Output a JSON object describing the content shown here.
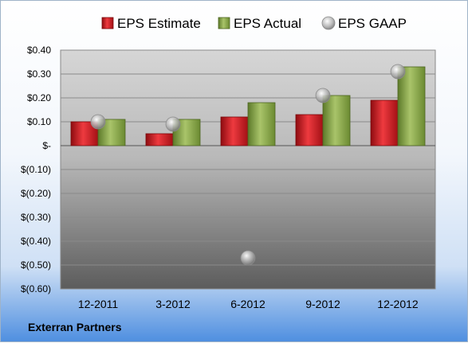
{
  "company": "Exterran Partners",
  "chart_data": {
    "type": "bar",
    "categories": [
      "12-2011",
      "3-2012",
      "6-2012",
      "9-2012",
      "12-2012"
    ],
    "series": [
      {
        "name": "EPS Estimate",
        "type": "bar",
        "color": "#c8161d",
        "values": [
          0.1,
          0.05,
          0.12,
          0.13,
          0.19
        ]
      },
      {
        "name": "EPS Actual",
        "type": "bar",
        "color": "#7f9f3f",
        "values": [
          0.11,
          0.11,
          0.18,
          0.21,
          0.33
        ]
      },
      {
        "name": "EPS GAAP",
        "type": "scatter",
        "color": "#a6a6a6",
        "values": [
          0.1,
          0.09,
          -0.47,
          0.21,
          0.31
        ]
      }
    ],
    "ylim": [
      -0.6,
      0.4
    ],
    "yticks": [
      0.4,
      0.3,
      0.2,
      0.1,
      0,
      -0.1,
      -0.2,
      -0.3,
      -0.4,
      -0.5,
      -0.6
    ],
    "ytick_labels": [
      "$0.40",
      "$0.30",
      "$0.20",
      "$0.10",
      "$-",
      "$(0.10)",
      "$(0.20)",
      "$(0.30)",
      "$(0.40)",
      "$(0.50)",
      "$(0.60)"
    ],
    "grid": true,
    "legend": "top"
  }
}
